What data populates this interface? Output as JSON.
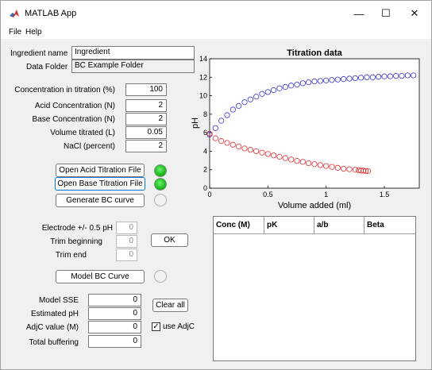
{
  "window": {
    "title": "MATLAB App",
    "icon": "matlab-logo-icon",
    "controls": [
      "—",
      "☐",
      "✕"
    ]
  },
  "menu": {
    "file": "File",
    "help": "Help"
  },
  "form": {
    "ingredient_label": "Ingredient name",
    "ingredient_value": "Ingredient",
    "folder_label": "Data Folder",
    "folder_value": "BC Example Folder",
    "conc_label": "Concentration in titration (%)",
    "conc_value": "100",
    "acid_label": "Acid Concentration (N)",
    "acid_value": "2",
    "base_label": "Base Concentration (N)",
    "base_value": "2",
    "volume_label": "Volume titrated (L)",
    "volume_value": "0.05",
    "nacl_label": "NaCl (percent)",
    "nacl_value": "2"
  },
  "buttons": {
    "open_acid": "Open Acid Titration File",
    "open_base": "Open Base Titration File",
    "generate_bc": "Generate BC curve",
    "ok": "OK",
    "model_bc": "Model BC Curve",
    "clear_all": "Clear all"
  },
  "lamps": {
    "acid": "on",
    "base": "on",
    "generate": "off",
    "model": "off",
    "on_color": "#20c020"
  },
  "trim": {
    "electrode_label": "Electrode +/- 0.5 pH",
    "electrode_value": "0",
    "begin_label": "Trim beginning",
    "begin_value": "0",
    "end_label": "Trim end",
    "end_value": "0"
  },
  "results": {
    "sse_label": "Model SSE",
    "sse_value": "0",
    "ph_label": "Estimated pH",
    "ph_value": "0",
    "adjc_label": "AdjC value (M)",
    "adjc_value": "0",
    "buffer_label": "Total buffering",
    "buffer_value": "0",
    "use_adjc_label": "use AdjC",
    "use_adjc_checked": true,
    "check_mark": "✓"
  },
  "table": {
    "columns": [
      "Conc (M)",
      "pK",
      "a/b",
      "Beta"
    ],
    "rows": []
  },
  "chart_data": {
    "type": "scatter",
    "title": "Titration data",
    "xlabel": "Volume added (ml)",
    "ylabel": "pH",
    "xlim": [
      0,
      1.8
    ],
    "ylim": [
      0,
      14
    ],
    "xticks": [
      "0",
      "0.5",
      "1",
      "1.5"
    ],
    "yticks": [
      "0",
      "2",
      "4",
      "6",
      "8",
      "10",
      "12",
      "14"
    ],
    "xtick_values": [
      0,
      0.5,
      1,
      1.5
    ],
    "ytick_values": [
      0,
      2,
      4,
      6,
      8,
      10,
      12,
      14
    ],
    "grid": false,
    "series": [
      {
        "color": "#3333cc",
        "marker": "circle-open",
        "x": [
          0.0,
          0.05,
          0.1,
          0.15,
          0.2,
          0.25,
          0.3,
          0.35,
          0.4,
          0.45,
          0.5,
          0.55,
          0.6,
          0.65,
          0.7,
          0.75,
          0.8,
          0.85,
          0.9,
          0.95,
          1.0,
          1.05,
          1.1,
          1.15,
          1.2,
          1.25,
          1.3,
          1.35,
          1.4,
          1.45,
          1.5,
          1.55,
          1.6,
          1.65,
          1.7,
          1.75
        ],
        "y": [
          5.8,
          6.5,
          7.3,
          7.9,
          8.5,
          8.9,
          9.3,
          9.6,
          9.9,
          10.2,
          10.4,
          10.6,
          10.8,
          10.95,
          11.1,
          11.2,
          11.35,
          11.45,
          11.55,
          11.6,
          11.65,
          11.7,
          11.75,
          11.8,
          11.85,
          11.9,
          11.95,
          12.0,
          12.0,
          12.05,
          12.1,
          12.1,
          12.15,
          12.15,
          12.2,
          12.2
        ]
      },
      {
        "color": "#e03030",
        "marker": "circle-open",
        "x": [
          0.0,
          0.05,
          0.1,
          0.15,
          0.2,
          0.25,
          0.3,
          0.35,
          0.4,
          0.45,
          0.5,
          0.55,
          0.6,
          0.65,
          0.7,
          0.75,
          0.8,
          0.85,
          0.9,
          0.95,
          1.0,
          1.05,
          1.1,
          1.15,
          1.2,
          1.25,
          1.28,
          1.3,
          1.32,
          1.34,
          1.36
        ],
        "y": [
          5.9,
          5.4,
          5.1,
          4.9,
          4.7,
          4.5,
          4.3,
          4.15,
          4.0,
          3.85,
          3.7,
          3.55,
          3.4,
          3.25,
          3.1,
          2.95,
          2.85,
          2.7,
          2.6,
          2.5,
          2.4,
          2.3,
          2.2,
          2.1,
          2.05,
          2.0,
          1.95,
          1.9,
          1.9,
          1.85,
          1.85
        ]
      }
    ]
  }
}
